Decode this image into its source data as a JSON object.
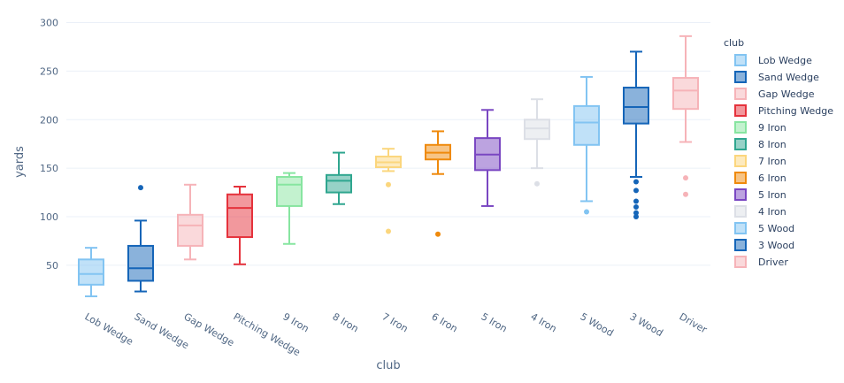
{
  "chart_data": {
    "type": "box",
    "xlabel": "club",
    "ylabel": "yards",
    "ylim": [
      8,
      305
    ],
    "yticks": [
      50,
      100,
      150,
      200,
      250,
      300
    ],
    "grid": true,
    "legend": {
      "title": "club",
      "position": "right"
    },
    "series": [
      {
        "name": "Lob Wedge",
        "color": "#82c4f2",
        "min": 18,
        "q1": 30,
        "median": 41,
        "q3": 56,
        "max": 68,
        "outliers": []
      },
      {
        "name": "Sand Wedge",
        "color": "#1565b8",
        "min": 23,
        "q1": 34,
        "median": 47,
        "q3": 70,
        "max": 96,
        "outliers": [
          130
        ]
      },
      {
        "name": "Gap Wedge",
        "color": "#f6b3b8",
        "min": 56,
        "q1": 70,
        "median": 91,
        "q3": 102,
        "max": 133,
        "outliers": []
      },
      {
        "name": "Pitching Wedge",
        "color": "#e5323c",
        "min": 51,
        "q1": 79,
        "median": 109,
        "q3": 123,
        "max": 131,
        "outliers": []
      },
      {
        "name": "9 Iron",
        "color": "#87e5a0",
        "min": 72,
        "q1": 111,
        "median": 133,
        "q3": 141,
        "max": 145,
        "outliers": []
      },
      {
        "name": "8 Iron",
        "color": "#2fa68f",
        "min": 113,
        "q1": 125,
        "median": 137,
        "q3": 143,
        "max": 166,
        "outliers": []
      },
      {
        "name": "7 Iron",
        "color": "#fbd67d",
        "min": 147,
        "q1": 151,
        "median": 156,
        "q3": 162,
        "max": 170,
        "outliers": [
          133,
          85
        ]
      },
      {
        "name": "6 Iron",
        "color": "#ef8a0c",
        "min": 144,
        "q1": 159,
        "median": 166,
        "q3": 174,
        "max": 188,
        "outliers": [
          82
        ]
      },
      {
        "name": "5 Iron",
        "color": "#7a47c2",
        "min": 111,
        "q1": 148,
        "median": 164,
        "q3": 181,
        "max": 210,
        "outliers": []
      },
      {
        "name": "4 Iron",
        "color": "#dcdfe6",
        "min": 150,
        "q1": 180,
        "median": 191,
        "q3": 200,
        "max": 221,
        "outliers": [
          134
        ]
      },
      {
        "name": "5 Wood",
        "color": "#82c4f2",
        "min": 116,
        "q1": 174,
        "median": 197,
        "q3": 214,
        "max": 244,
        "outliers": [
          105
        ]
      },
      {
        "name": "3 Wood",
        "color": "#1565b8",
        "min": 141,
        "q1": 196,
        "median": 213,
        "q3": 233,
        "max": 270,
        "outliers": [
          136,
          127,
          116,
          110,
          104,
          100
        ]
      },
      {
        "name": "Driver",
        "color": "#f6b3b8",
        "min": 177,
        "q1": 211,
        "median": 230,
        "q3": 243,
        "max": 286,
        "outliers": [
          140,
          123
        ]
      }
    ]
  }
}
